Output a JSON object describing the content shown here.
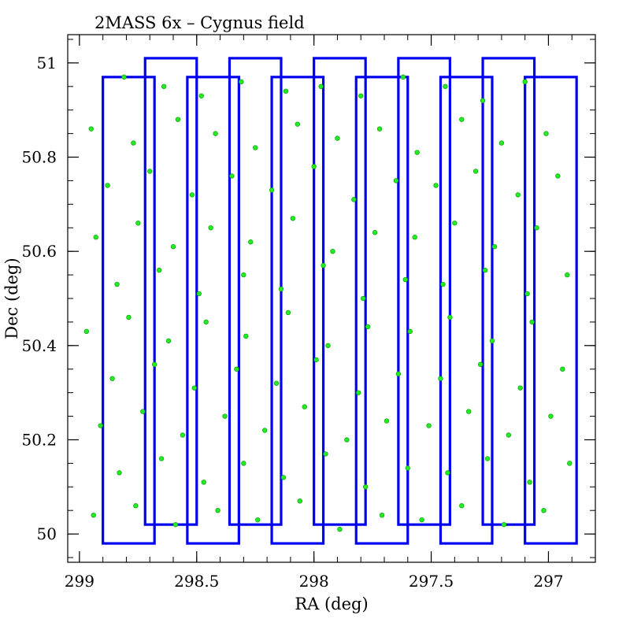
{
  "chart_data": {
    "type": "scatter",
    "title": "2MASS 6x – Cygnus field",
    "xlabel": "RA (deg)",
    "ylabel": "Dec (deg)",
    "xlim": [
      299.05,
      296.8
    ],
    "ylim": [
      49.94,
      51.06
    ],
    "x_axis_reversed": true,
    "xticks": [
      299,
      298.5,
      298,
      297.5,
      297
    ],
    "xtick_labels": [
      "299",
      "298.5",
      "298",
      "297.5",
      "297"
    ],
    "yticks": [
      50,
      50.2,
      50.4,
      50.6,
      50.8,
      51
    ],
    "ytick_labels": [
      "50",
      "50.2",
      "50.4",
      "50.6",
      "50.8",
      "51"
    ],
    "x_minor_step": 0.1,
    "y_minor_step": 0.05,
    "grid": false,
    "colors": {
      "points": "#22ee22",
      "points_edge": "#11aa11",
      "boxes": "#0000ee",
      "axes": "#000000"
    },
    "tiles": [
      {
        "ra_min": 298.68,
        "ra_max": 298.9,
        "dec_min": 49.98,
        "dec_max": 50.97
      },
      {
        "ra_min": 298.5,
        "ra_max": 298.72,
        "dec_min": 50.02,
        "dec_max": 51.01
      },
      {
        "ra_min": 298.32,
        "ra_max": 298.54,
        "dec_min": 49.98,
        "dec_max": 50.97
      },
      {
        "ra_min": 298.14,
        "ra_max": 298.36,
        "dec_min": 50.02,
        "dec_max": 51.01
      },
      {
        "ra_min": 297.96,
        "ra_max": 298.18,
        "dec_min": 49.98,
        "dec_max": 50.97
      },
      {
        "ra_min": 297.78,
        "ra_max": 298.0,
        "dec_min": 50.02,
        "dec_max": 51.01
      },
      {
        "ra_min": 297.6,
        "ra_max": 297.82,
        "dec_min": 49.98,
        "dec_max": 50.97
      },
      {
        "ra_min": 297.42,
        "ra_max": 297.64,
        "dec_min": 50.02,
        "dec_max": 51.01
      },
      {
        "ra_min": 297.24,
        "ra_max": 297.46,
        "dec_min": 49.98,
        "dec_max": 50.97
      },
      {
        "ra_min": 297.06,
        "ra_max": 297.28,
        "dec_min": 50.02,
        "dec_max": 51.01
      },
      {
        "ra_min": 296.88,
        "ra_max": 297.1,
        "dec_min": 49.98,
        "dec_max": 50.97
      }
    ],
    "points": [
      [
        298.81,
        50.97
      ],
      [
        298.64,
        50.95
      ],
      [
        298.48,
        50.93
      ],
      [
        298.31,
        50.96
      ],
      [
        298.12,
        50.94
      ],
      [
        297.97,
        50.95
      ],
      [
        297.8,
        50.93
      ],
      [
        297.62,
        50.97
      ],
      [
        297.44,
        50.95
      ],
      [
        297.28,
        50.92
      ],
      [
        297.1,
        50.96
      ],
      [
        298.95,
        50.86
      ],
      [
        298.77,
        50.83
      ],
      [
        298.58,
        50.88
      ],
      [
        298.42,
        50.85
      ],
      [
        298.25,
        50.82
      ],
      [
        298.07,
        50.87
      ],
      [
        297.9,
        50.84
      ],
      [
        297.72,
        50.86
      ],
      [
        297.56,
        50.81
      ],
      [
        297.37,
        50.88
      ],
      [
        297.2,
        50.83
      ],
      [
        297.01,
        50.85
      ],
      [
        298.88,
        50.74
      ],
      [
        298.7,
        50.77
      ],
      [
        298.52,
        50.72
      ],
      [
        298.35,
        50.76
      ],
      [
        298.18,
        50.73
      ],
      [
        298.0,
        50.78
      ],
      [
        297.83,
        50.71
      ],
      [
        297.65,
        50.75
      ],
      [
        297.48,
        50.74
      ],
      [
        297.31,
        50.77
      ],
      [
        297.13,
        50.72
      ],
      [
        296.96,
        50.76
      ],
      [
        298.93,
        50.63
      ],
      [
        298.75,
        50.66
      ],
      [
        298.6,
        50.61
      ],
      [
        298.44,
        50.65
      ],
      [
        298.27,
        50.62
      ],
      [
        298.09,
        50.67
      ],
      [
        297.92,
        50.6
      ],
      [
        297.74,
        50.64
      ],
      [
        297.57,
        50.63
      ],
      [
        297.4,
        50.66
      ],
      [
        297.23,
        50.61
      ],
      [
        297.05,
        50.65
      ],
      [
        298.84,
        50.53
      ],
      [
        298.66,
        50.56
      ],
      [
        298.49,
        50.51
      ],
      [
        298.3,
        50.55
      ],
      [
        298.14,
        50.52
      ],
      [
        297.96,
        50.57
      ],
      [
        297.79,
        50.5
      ],
      [
        297.61,
        50.54
      ],
      [
        297.45,
        50.53
      ],
      [
        297.27,
        50.56
      ],
      [
        297.09,
        50.51
      ],
      [
        296.92,
        50.55
      ],
      [
        298.97,
        50.43
      ],
      [
        298.79,
        50.46
      ],
      [
        298.62,
        50.41
      ],
      [
        298.46,
        50.45
      ],
      [
        298.29,
        50.42
      ],
      [
        298.11,
        50.47
      ],
      [
        297.94,
        50.4
      ],
      [
        297.77,
        50.44
      ],
      [
        297.59,
        50.43
      ],
      [
        297.42,
        50.46
      ],
      [
        297.24,
        50.41
      ],
      [
        297.07,
        50.45
      ],
      [
        298.86,
        50.33
      ],
      [
        298.68,
        50.36
      ],
      [
        298.51,
        50.31
      ],
      [
        298.33,
        50.35
      ],
      [
        298.16,
        50.32
      ],
      [
        297.99,
        50.37
      ],
      [
        297.81,
        50.3
      ],
      [
        297.64,
        50.34
      ],
      [
        297.46,
        50.33
      ],
      [
        297.29,
        50.36
      ],
      [
        297.12,
        50.31
      ],
      [
        296.94,
        50.35
      ],
      [
        298.91,
        50.23
      ],
      [
        298.73,
        50.26
      ],
      [
        298.56,
        50.21
      ],
      [
        298.38,
        50.25
      ],
      [
        298.21,
        50.22
      ],
      [
        298.04,
        50.27
      ],
      [
        297.86,
        50.2
      ],
      [
        297.69,
        50.24
      ],
      [
        297.51,
        50.23
      ],
      [
        297.34,
        50.26
      ],
      [
        297.17,
        50.21
      ],
      [
        296.99,
        50.25
      ],
      [
        298.83,
        50.13
      ],
      [
        298.65,
        50.16
      ],
      [
        298.47,
        50.11
      ],
      [
        298.3,
        50.15
      ],
      [
        298.13,
        50.12
      ],
      [
        297.95,
        50.17
      ],
      [
        297.78,
        50.1
      ],
      [
        297.6,
        50.14
      ],
      [
        297.43,
        50.13
      ],
      [
        297.26,
        50.16
      ],
      [
        297.08,
        50.11
      ],
      [
        296.91,
        50.15
      ],
      [
        298.94,
        50.04
      ],
      [
        298.76,
        50.06
      ],
      [
        298.59,
        50.02
      ],
      [
        298.41,
        50.05
      ],
      [
        298.24,
        50.03
      ],
      [
        298.06,
        50.07
      ],
      [
        297.89,
        50.01
      ],
      [
        297.71,
        50.04
      ],
      [
        297.54,
        50.03
      ],
      [
        297.37,
        50.06
      ],
      [
        297.19,
        50.02
      ],
      [
        297.02,
        50.05
      ]
    ]
  }
}
